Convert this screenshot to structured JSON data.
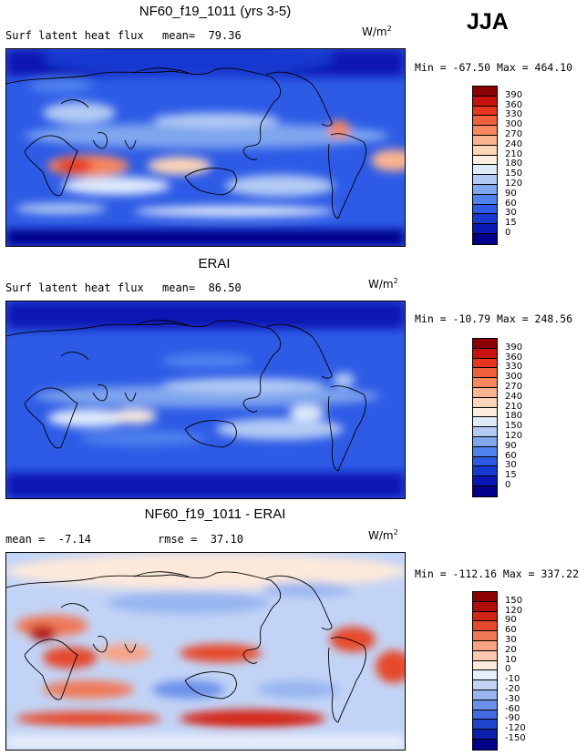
{
  "season": "JJA",
  "panels": [
    {
      "title": "NF60_f19_1011 (yrs 3-5)",
      "left_label": "Surf latent heat flux",
      "mid_label": "mean=  79.36",
      "units_base": "W/m",
      "units_exp": "2",
      "minmax": "Min = -67.50 Max = 464.10",
      "colorbar": {
        "labels": [
          "390",
          "360",
          "330",
          "300",
          "270",
          "240",
          "210",
          "180",
          "150",
          "120",
          "90",
          "60",
          "30",
          "15",
          "0"
        ],
        "colors": [
          "#8b0000",
          "#c8120c",
          "#e6341e",
          "#f0603c",
          "#f7875f",
          "#fab48f",
          "#fcd4b8",
          "#fdeede",
          "#dfeafb",
          "#b3cbf4",
          "#7fa6ee",
          "#5082ee",
          "#2d5be6",
          "#1739d0",
          "#0a17b4",
          "#00008b"
        ]
      }
    },
    {
      "title": "ERAI",
      "left_label": "Surf latent heat flux",
      "mid_label": "mean=  86.50",
      "units_base": "W/m",
      "units_exp": "2",
      "minmax": "Min = -10.79 Max = 248.56",
      "colorbar": {
        "labels": [
          "390",
          "360",
          "330",
          "300",
          "270",
          "240",
          "210",
          "180",
          "150",
          "120",
          "90",
          "60",
          "30",
          "15",
          "0"
        ],
        "colors": [
          "#8b0000",
          "#c8120c",
          "#e6341e",
          "#f0603c",
          "#f7875f",
          "#fab48f",
          "#fcd4b8",
          "#fdeede",
          "#dfeafb",
          "#b3cbf4",
          "#7fa6ee",
          "#5082ee",
          "#2d5be6",
          "#1739d0",
          "#0a17b4",
          "#00008b"
        ]
      }
    },
    {
      "title": "NF60_f19_1011 - ERAI",
      "left_label": "mean =  -7.14",
      "mid_label": "rmse =  37.10",
      "units_base": "W/m",
      "units_exp": "2",
      "minmax": "Min = -112.16 Max = 337.22",
      "colorbar": {
        "labels": [
          "150",
          "120",
          "90",
          "60",
          "30",
          "20",
          "10",
          "0",
          "-10",
          "-20",
          "-30",
          "-60",
          "-90",
          "-120",
          "-150"
        ],
        "colors": [
          "#8b0000",
          "#b00f08",
          "#d42514",
          "#e64a2c",
          "#f07856",
          "#f7a383",
          "#fbc7ae",
          "#fde9db",
          "#e6eefb",
          "#c2d4f6",
          "#98b5f0",
          "#6c90ea",
          "#436ce2",
          "#2144cc",
          "#0c1eae",
          "#00008b"
        ]
      }
    }
  ]
}
